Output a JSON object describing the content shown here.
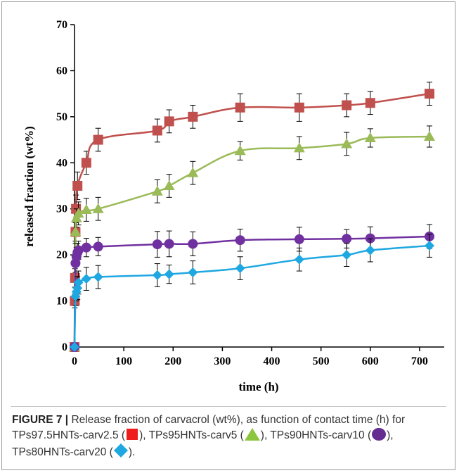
{
  "chart_data": {
    "type": "line",
    "title": "",
    "xlabel": "time (h)",
    "ylabel": "released fraction (wt%)",
    "xlim": [
      0,
      750
    ],
    "ylim": [
      0,
      70
    ],
    "xticks": [
      0,
      100,
      200,
      300,
      400,
      500,
      600,
      700
    ],
    "yticks": [
      0,
      10,
      20,
      30,
      40,
      50,
      60,
      70
    ],
    "grid": false,
    "series": [
      {
        "name": "TPs97.5HNTs-carv2.5",
        "color": "#c0504d",
        "marker": "square",
        "x": [
          0,
          0.5,
          1,
          2,
          3,
          6,
          24,
          48,
          168,
          192,
          240,
          336,
          456,
          552,
          600,
          720
        ],
        "y": [
          0,
          10,
          15,
          25,
          30,
          35,
          40,
          45,
          47,
          49,
          50,
          52,
          52,
          52.5,
          53,
          55
        ],
        "err": [
          0,
          1.5,
          2,
          2.5,
          3,
          3,
          2.5,
          2.5,
          2.5,
          2.5,
          2.5,
          3,
          3,
          2.5,
          2.5,
          2.5
        ]
      },
      {
        "name": "TPs95HNTs-carv5",
        "color": "#9bbb59",
        "marker": "triangle",
        "x": [
          0,
          2,
          4,
          8,
          24,
          48,
          168,
          192,
          240,
          336,
          456,
          552,
          600,
          720
        ],
        "y": [
          0,
          25,
          28,
          29,
          29.8,
          30,
          33.8,
          35,
          37.8,
          42.6,
          43.2,
          44.1,
          45.4,
          45.7
        ],
        "err": [
          0,
          2,
          2,
          2.5,
          2.5,
          2.5,
          2.5,
          2.5,
          2.5,
          2,
          2.5,
          2.5,
          2,
          2.3
        ]
      },
      {
        "name": "TPs90HNTs-carv10",
        "color": "#7030a0",
        "marker": "circle",
        "x": [
          0,
          2,
          4,
          6,
          8,
          24,
          48,
          168,
          192,
          240,
          336,
          456,
          552,
          600,
          720
        ],
        "y": [
          0,
          18.2,
          19.6,
          20.5,
          21,
          21.6,
          21.8,
          22.3,
          22.4,
          22.4,
          23.2,
          23.4,
          23.5,
          23.6,
          24
        ],
        "err": [
          0,
          2,
          2,
          2,
          2,
          2,
          2,
          2.8,
          2.8,
          2.6,
          2.4,
          2.6,
          2,
          2.5,
          2.6
        ]
      },
      {
        "name": "TPs80HNTs-carv20",
        "color": "#1fa7e1",
        "marker": "diamond",
        "x": [
          0,
          2,
          4,
          6,
          8,
          24,
          48,
          168,
          192,
          240,
          336,
          456,
          552,
          600,
          720
        ],
        "y": [
          0,
          11,
          12,
          12.8,
          14,
          14.8,
          15.2,
          15.6,
          15.8,
          16.2,
          17.1,
          19,
          20,
          21,
          22
        ],
        "err": [
          0,
          2,
          2,
          2.5,
          2.5,
          2.5,
          2.5,
          2.5,
          2,
          2.5,
          2.5,
          2.5,
          2.5,
          2.5,
          2.5
        ]
      }
    ]
  },
  "caption": {
    "label": "FIGURE 7 |",
    "text_1": " Release fraction of carvacrol (wt%), as function of contact time (h) for TPs97.5HNTs-carv2.5 (",
    "text_2": "), TPs95HNTs-carv5 (",
    "text_3": "), TPs90HNTs-carv10 (",
    "text_4": "), TPs80HNTs-carv20 (",
    "text_5": ")."
  }
}
